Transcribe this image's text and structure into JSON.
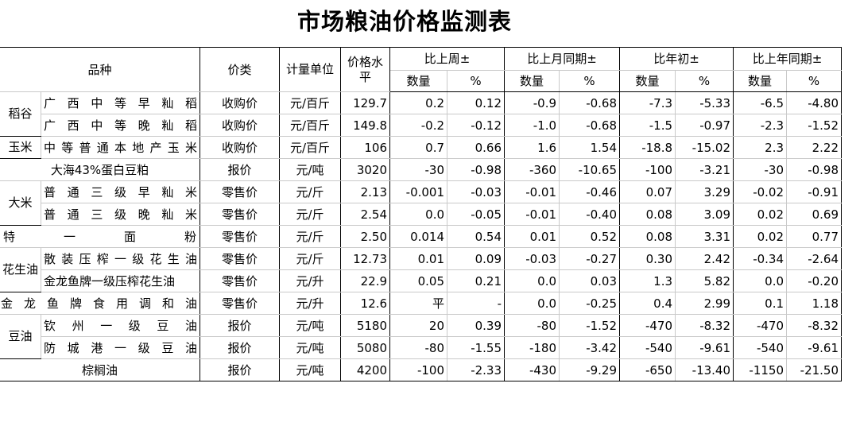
{
  "title": "市场粮油价格监测表",
  "columns": {
    "variety": "品种",
    "price_type": "价类",
    "unit": "计量单位",
    "price": "价格水平",
    "wk": "比上周±",
    "mo": "比上月同期±",
    "yr_start": "比年初±",
    "yoy": "比上年同期±",
    "qty": "数量",
    "pct": "%"
  },
  "groups": [
    {
      "label": "稻谷"
    },
    {
      "label": "玉米"
    },
    {
      "label": "大米"
    },
    {
      "label": "花生油"
    },
    {
      "label": "豆油"
    }
  ],
  "rows": [
    {
      "name": "广西中等早籼稻",
      "type": "收购价",
      "unit": "元/百斤",
      "price": "129.7",
      "wk_q": "0.2",
      "wk_p": "0.12",
      "mo_q": "-0.9",
      "mo_p": "-0.68",
      "ys_q": "-7.3",
      "ys_p": "-5.33",
      "yy_q": "-6.5",
      "yy_p": "-4.80"
    },
    {
      "name": "广西中等晚籼稻",
      "type": "收购价",
      "unit": "元/百斤",
      "price": "149.8",
      "wk_q": "-0.2",
      "wk_p": "-0.12",
      "mo_q": "-1.0",
      "mo_p": "-0.68",
      "ys_q": "-1.5",
      "ys_p": "-0.97",
      "yy_q": "-2.3",
      "yy_p": "-1.52"
    },
    {
      "name": "中等普通本地产玉米",
      "type": "收购价",
      "unit": "元/百斤",
      "price": "106",
      "wk_q": "0.7",
      "wk_p": "0.66",
      "mo_q": "1.6",
      "mo_p": "1.54",
      "ys_q": "-18.8",
      "ys_p": "-15.02",
      "yy_q": "2.3",
      "yy_p": "2.22"
    },
    {
      "name": "大海43%蛋白豆粕",
      "type": "报价",
      "unit": "元/吨",
      "price": "3020",
      "wk_q": "-30",
      "wk_p": "-0.98",
      "mo_q": "-360",
      "mo_p": "-10.65",
      "ys_q": "-100",
      "ys_p": "-3.21",
      "yy_q": "-30",
      "yy_p": "-0.98"
    },
    {
      "name": "普通三级早籼米",
      "type": "零售价",
      "unit": "元/斤",
      "price": "2.13",
      "wk_q": "-0.001",
      "wk_p": "-0.03",
      "mo_q": "-0.01",
      "mo_p": "-0.46",
      "ys_q": "0.07",
      "ys_p": "3.29",
      "yy_q": "-0.02",
      "yy_p": "-0.91"
    },
    {
      "name": "普通三级晚籼米",
      "type": "零售价",
      "unit": "元/斤",
      "price": "2.54",
      "wk_q": "0.0",
      "wk_p": "-0.05",
      "mo_q": "-0.01",
      "mo_p": "-0.40",
      "ys_q": "0.08",
      "ys_p": "3.09",
      "yy_q": "0.02",
      "yy_p": "0.69"
    },
    {
      "name": "特一面粉",
      "type": "零售价",
      "unit": "元/斤",
      "price": "2.50",
      "wk_q": "0.014",
      "wk_p": "0.54",
      "mo_q": "0.01",
      "mo_p": "0.52",
      "ys_q": "0.08",
      "ys_p": "3.31",
      "yy_q": "0.02",
      "yy_p": "0.77"
    },
    {
      "name": "散装压榨一级花生油",
      "type": "零售价",
      "unit": "元/斤",
      "price": "12.73",
      "wk_q": "0.01",
      "wk_p": "0.09",
      "mo_q": "-0.03",
      "mo_p": "-0.27",
      "ys_q": "0.30",
      "ys_p": "2.42",
      "yy_q": "-0.34",
      "yy_p": "-2.64"
    },
    {
      "name": "金龙鱼牌一级压榨花生油",
      "type": "零售价",
      "unit": "元/升",
      "price": "22.9",
      "wk_q": "0.05",
      "wk_p": "0.21",
      "mo_q": "0.0",
      "mo_p": "0.03",
      "ys_q": "1.3",
      "ys_p": "5.82",
      "yy_q": "0.0",
      "yy_p": "-0.20"
    },
    {
      "name": "金龙鱼牌食用调和油",
      "type": "零售价",
      "unit": "元/升",
      "price": "12.6",
      "wk_q": "平",
      "wk_p": "-",
      "mo_q": "0.0",
      "mo_p": "-0.25",
      "ys_q": "0.4",
      "ys_p": "2.99",
      "yy_q": "0.1",
      "yy_p": "1.18"
    },
    {
      "name": "钦州一级豆油",
      "type": "报价",
      "unit": "元/吨",
      "price": "5180",
      "wk_q": "20",
      "wk_p": "0.39",
      "mo_q": "-80",
      "mo_p": "-1.52",
      "ys_q": "-470",
      "ys_p": "-8.32",
      "yy_q": "-470",
      "yy_p": "-8.32"
    },
    {
      "name": "防城港一级豆油",
      "type": "报价",
      "unit": "元/吨",
      "price": "5080",
      "wk_q": "-80",
      "wk_p": "-1.55",
      "mo_q": "-180",
      "mo_p": "-3.42",
      "ys_q": "-540",
      "ys_p": "-9.61",
      "yy_q": "-540",
      "yy_p": "-9.61"
    },
    {
      "name": "棕榈油",
      "type": "报价",
      "unit": "元/吨",
      "price": "4200",
      "wk_q": "-100",
      "wk_p": "-2.33",
      "mo_q": "-430",
      "mo_p": "-9.29",
      "ys_q": "-650",
      "ys_p": "-13.40",
      "yy_q": "-1150",
      "yy_p": "-21.50"
    }
  ]
}
